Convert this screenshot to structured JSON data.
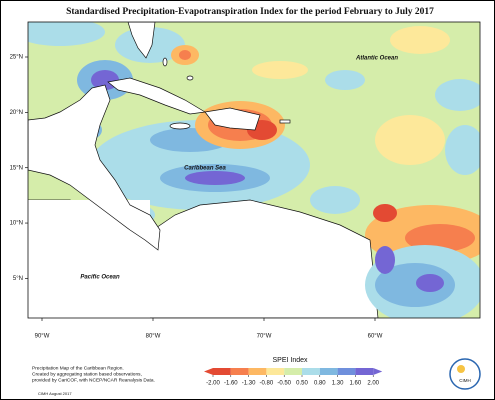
{
  "title": "Standardised Precipitation-Evapotranspiration Index for the period February to July 2017",
  "map": {
    "lat_ticks": [
      {
        "value": 5,
        "label": "5°N"
      },
      {
        "value": 10,
        "label": "10°N"
      },
      {
        "value": 15,
        "label": "15°N"
      },
      {
        "value": 20,
        "label": "20°N"
      },
      {
        "value": 25,
        "label": "25°N"
      }
    ],
    "lon_ticks": [
      {
        "value": -90,
        "label": "90°W"
      },
      {
        "value": -80,
        "label": "80°W"
      },
      {
        "value": -70,
        "label": "70°W"
      },
      {
        "value": -60,
        "label": "60°W"
      }
    ],
    "labels": {
      "atlantic": "Atlantic Ocean",
      "caribbean": "Caribbean Sea",
      "pacific": "Pacific Ocean"
    }
  },
  "legend": {
    "title": "SPEI Index",
    "ticks": [
      {
        "value": -2,
        "label": "-2.00"
      },
      {
        "value": -1.6,
        "label": "-1.60"
      },
      {
        "value": -1.3,
        "label": "-1.30"
      },
      {
        "value": -0.8,
        "label": "-0.80"
      },
      {
        "value": -0.5,
        "label": "-0.50"
      },
      {
        "value": 0.5,
        "label": "0.50"
      },
      {
        "value": 0.8,
        "label": "0.80"
      },
      {
        "value": 1.3,
        "label": "1.30"
      },
      {
        "value": 1.6,
        "label": "1.60"
      },
      {
        "value": 2,
        "label": "2.00"
      }
    ],
    "colors": [
      "#e34a33",
      "#f67f4e",
      "#fdb863",
      "#fde89a",
      "#d5edaa",
      "#abdde9",
      "#7fb8e0",
      "#6f8fdc",
      "#7466d4"
    ]
  },
  "source": [
    "Precipitation Map of the Caribbean Region.",
    "Created by aggregating station based observations,",
    "provided by CariCOF, with NCEP/NCAR Reanalysis Data."
  ],
  "footer": "CIMH August 2017",
  "logo": "CIMH"
}
